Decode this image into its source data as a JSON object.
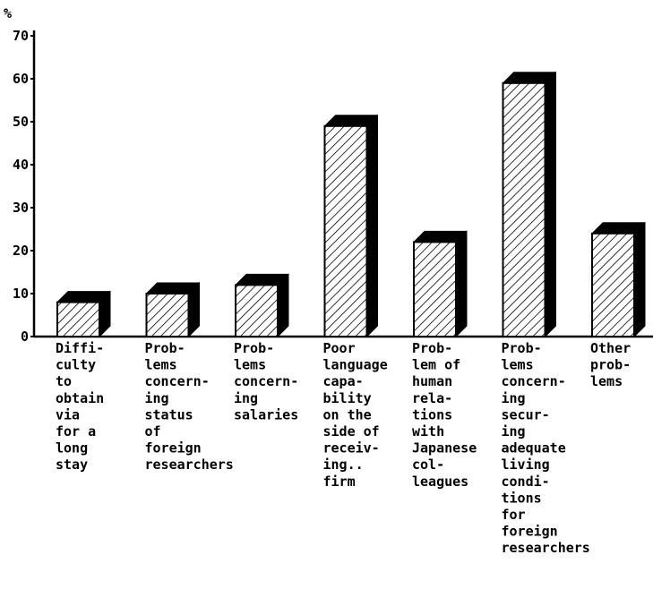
{
  "chart_data": {
    "type": "bar",
    "ylabel": "%",
    "categories": [
      "Diffi-\nculty\nto\nobtain\nvia\nfor a\nlong\nstay",
      "Prob-\nlems\nconcern-\ning\nstatus\nof\nforeign\nresearchers",
      "Prob-\nlems\nconcern-\ning\nsalaries",
      "Poor\nlanguage\ncapa-\nbility\non the\nside of\nreceiv-\ning..\nfirm",
      "Prob-\nlem of\nhuman\nrela-\ntions\nwith\nJapanese\ncol-\nleagues",
      "Prob-\nlems\nconcern-\ning\nsecur-\ning\nadequate\nliving\ncondi-\ntions\nfor\nforeign\nresearchers",
      "Other\nprob-\nlems"
    ],
    "values": [
      8,
      10,
      12,
      49,
      22,
      59,
      24
    ],
    "color": "#000000",
    "ylim": [
      0,
      70
    ],
    "yticks": [
      0,
      10,
      20,
      30,
      40,
      50,
      60,
      70
    ],
    "grid": false
  }
}
